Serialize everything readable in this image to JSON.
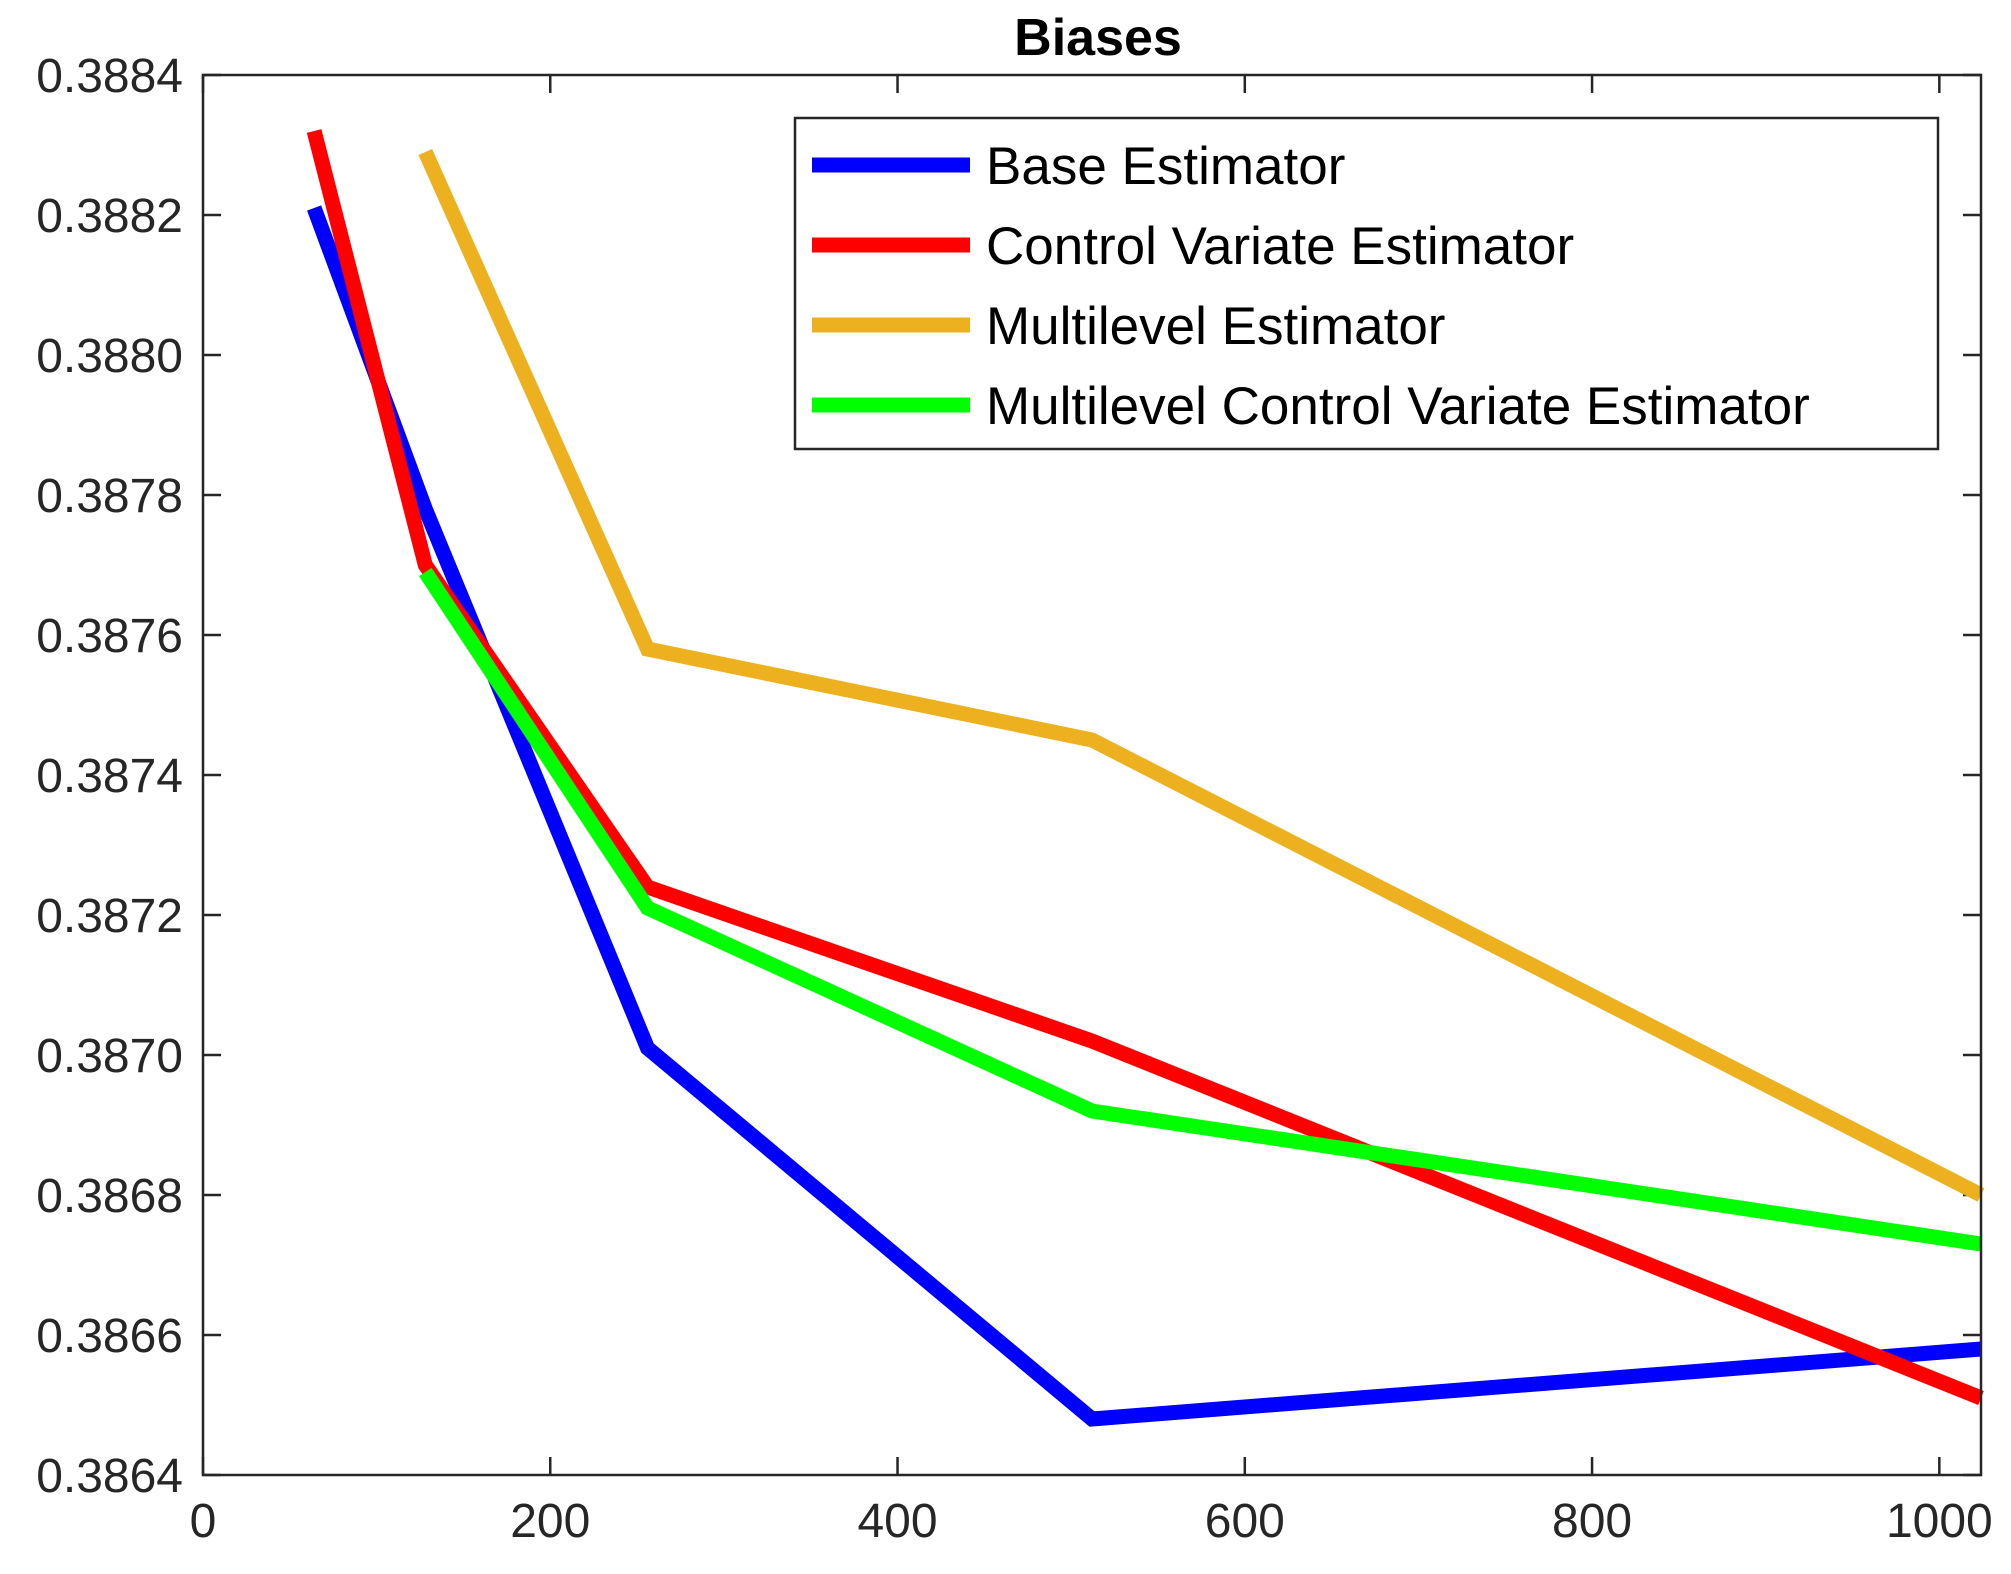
{
  "chart_data": {
    "type": "line",
    "title": "Biases",
    "xlabel": "",
    "ylabel": "",
    "xlim": [
      0,
      1024
    ],
    "ylim": [
      0.3864,
      0.3884
    ],
    "x_ticks": [
      0,
      200,
      400,
      600,
      800,
      1000
    ],
    "x_tick_labels": [
      "0",
      "200",
      "400",
      "600",
      "800",
      "1000"
    ],
    "y_ticks": [
      0.3864,
      0.3866,
      0.3868,
      0.387,
      0.3872,
      0.3874,
      0.3876,
      0.3878,
      0.388,
      0.3882,
      0.3884
    ],
    "y_tick_labels": [
      "0.3864",
      "0.3866",
      "0.3868",
      "0.3870",
      "0.3872",
      "0.3874",
      "0.3876",
      "0.3878",
      "0.3880",
      "0.3882",
      "0.3884"
    ],
    "grid": false,
    "legend_position": "top-right",
    "series": [
      {
        "name": "Base Estimator",
        "color": "#0000ff",
        "x": [
          64,
          128,
          256,
          512,
          1024
        ],
        "y": [
          0.38821,
          0.38778,
          0.38701,
          0.38648,
          0.38658
        ]
      },
      {
        "name": "Control Variate Estimator",
        "color": "#ff0000",
        "x": [
          64,
          128,
          256,
          512,
          1024
        ],
        "y": [
          0.38832,
          0.3877,
          0.38724,
          0.38702,
          0.38651
        ]
      },
      {
        "name": "Multilevel Estimator",
        "color": "#edb120",
        "x": [
          128,
          256,
          512,
          1024
        ],
        "y": [
          0.38829,
          0.38758,
          0.38745,
          0.3868
        ]
      },
      {
        "name": "Multilevel Control Variate Estimator",
        "color": "#00ff00",
        "x": [
          128,
          256,
          512,
          1024
        ],
        "y": [
          0.38769,
          0.38721,
          0.38692,
          0.38673
        ]
      }
    ]
  }
}
